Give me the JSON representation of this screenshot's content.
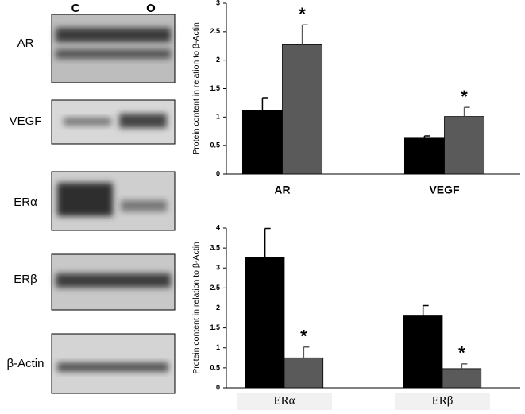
{
  "blot_panel": {
    "lanes": [
      "C",
      "O"
    ],
    "rows": [
      "AR",
      "VEGF",
      "ERα",
      "ERβ",
      "β-Actin"
    ]
  },
  "chart_data": [
    {
      "type": "bar",
      "categories": [
        "AR",
        "VEGF"
      ],
      "y_label": "Protein content in relation to β-Actin",
      "series": [
        {
          "color": "#000000",
          "values": [
            1.12,
            0.63
          ],
          "errors": [
            0.22,
            0.04
          ]
        },
        {
          "color": "#5a5a5a",
          "values": [
            2.27,
            1.01
          ],
          "errors": [
            0.35,
            0.16
          ],
          "significance": [
            "*",
            "*"
          ]
        }
      ],
      "ylim": [
        0,
        3
      ],
      "yticks": [
        0,
        0.5,
        1,
        1.5,
        2,
        2.5,
        3
      ]
    },
    {
      "type": "bar",
      "categories": [
        "ERα",
        "ERβ"
      ],
      "y_label": "Protein content in relation to β-Actin",
      "series": [
        {
          "color": "#000000",
          "values": [
            3.27,
            1.8
          ],
          "errors": [
            0.72,
            0.26
          ]
        },
        {
          "color": "#5a5a5a",
          "values": [
            0.75,
            0.48
          ],
          "errors": [
            0.27,
            0.12
          ],
          "significance": [
            "*",
            "*"
          ]
        }
      ],
      "ylim": [
        0,
        4
      ],
      "yticks": [
        0,
        0.5,
        1,
        1.5,
        2,
        2.5,
        3,
        3.5,
        4
      ]
    }
  ]
}
